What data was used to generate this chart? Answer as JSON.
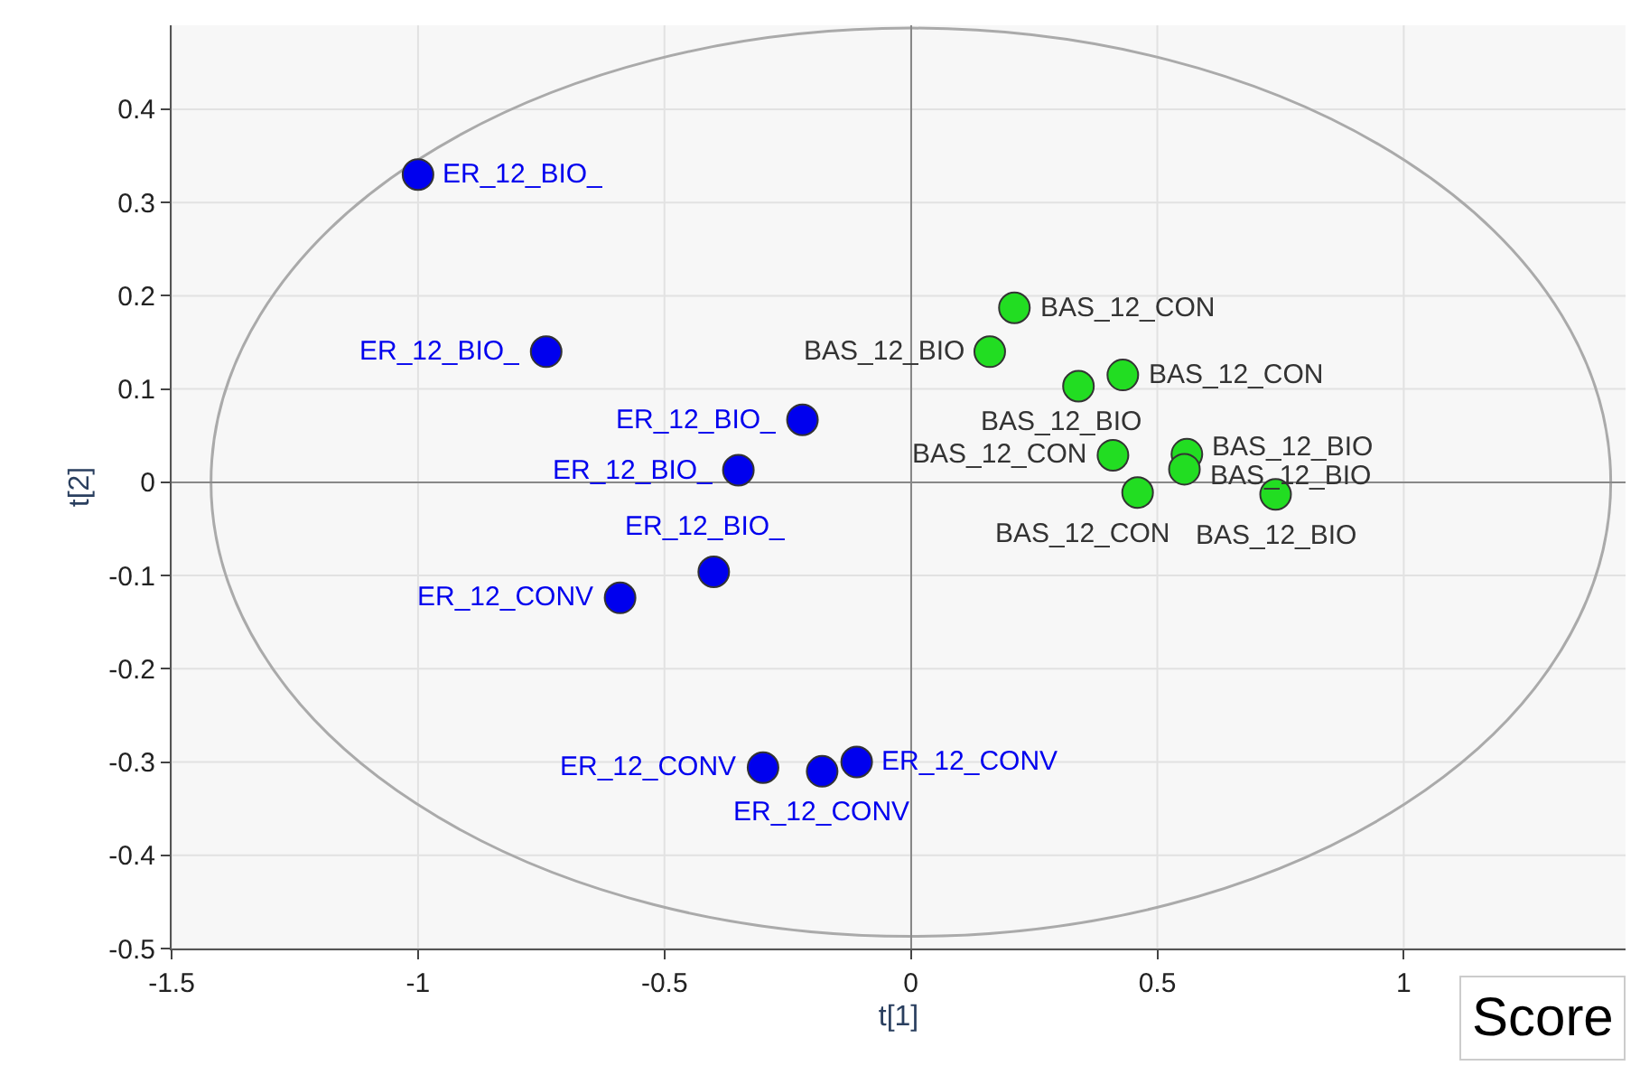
{
  "chart_data": {
    "type": "scatter",
    "xlabel": "t[1]",
    "ylabel": "t[2]",
    "xlim": [
      -1.5,
      1.45
    ],
    "ylim": [
      -0.5,
      0.49
    ],
    "xticks": [
      -1.5,
      -1,
      -0.5,
      0,
      0.5,
      1
    ],
    "yticks": [
      -0.5,
      -0.4,
      -0.3,
      -0.2,
      -0.1,
      0,
      0.1,
      0.2,
      0.3,
      0.4
    ],
    "grid": true,
    "legend": false,
    "marker": "circle",
    "series": [
      {
        "color": "#0000ee",
        "x": [
          -1.0,
          -0.74,
          -0.22,
          -0.35,
          -0.4,
          -0.59,
          -0.3,
          -0.18,
          -0.11
        ],
        "values": [
          0.33,
          0.14,
          0.067,
          0.013,
          -0.096,
          -0.124,
          -0.306,
          -0.31,
          -0.3
        ]
      },
      {
        "color": "#22dd22",
        "x": [
          0.21,
          0.16,
          0.34,
          0.43,
          0.41,
          0.56,
          0.555,
          0.46,
          0.74
        ],
        "values": [
          0.187,
          0.14,
          0.103,
          0.115,
          0.029,
          0.03,
          0.014,
          -0.011,
          -0.013
        ]
      }
    ],
    "annotations": [
      {
        "text": "ER_12_BIO_",
        "x": -1.0,
        "y": 0.33
      },
      {
        "text": "ER_12_BIO_",
        "x": -0.74,
        "y": 0.14
      },
      {
        "text": "ER_12_BIO_",
        "x": -0.22,
        "y": 0.067
      },
      {
        "text": "ER_12_BIO_",
        "x": -0.35,
        "y": 0.013
      },
      {
        "text": "ER_12_BIO_",
        "x": -0.4,
        "y": -0.096
      },
      {
        "text": "ER_12_CONV",
        "x": -0.59,
        "y": -0.124
      },
      {
        "text": "ER_12_CONV",
        "x": -0.3,
        "y": -0.306
      },
      {
        "text": "ER_12_CONV",
        "x": -0.18,
        "y": -0.31
      },
      {
        "text": "ER_12_CONV",
        "x": -0.11,
        "y": -0.3
      },
      {
        "text": "BAS_12_CON",
        "x": 0.21,
        "y": 0.187
      },
      {
        "text": "BAS_12_BIO",
        "x": 0.16,
        "y": 0.14
      },
      {
        "text": "BAS_12_BIO",
        "x": 0.34,
        "y": 0.103
      },
      {
        "text": "BAS_12_CON",
        "x": 0.43,
        "y": 0.115
      },
      {
        "text": "BAS_12_CON",
        "x": 0.41,
        "y": 0.029
      },
      {
        "text": "BAS_12_BIO",
        "x": 0.56,
        "y": 0.03
      },
      {
        "text": "BAS_12_BIO",
        "x": 0.555,
        "y": 0.014
      },
      {
        "text": "BAS_12_CON",
        "x": 0.46,
        "y": -0.011
      },
      {
        "text": "BAS_12_BIO",
        "x": 0.74,
        "y": -0.013
      },
      "Score"
    ]
  }
}
